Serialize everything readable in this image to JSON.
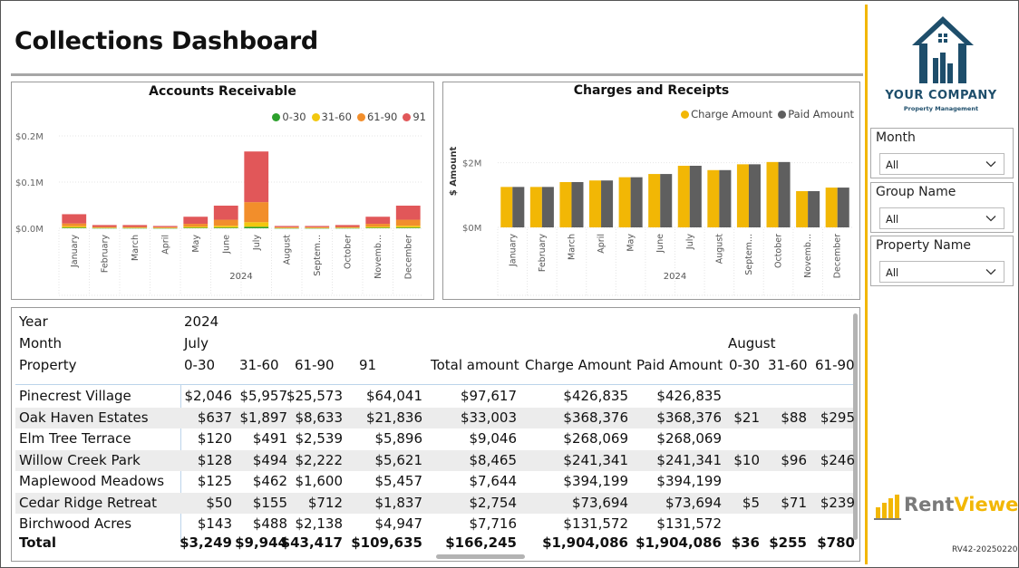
{
  "dashboard": {
    "title": "Collections Dashboard",
    "accent_color": "#f2b705",
    "brand_color": "#1e4e6b"
  },
  "ar_chart": {
    "chart_data": {
      "type": "bar",
      "stacked": true,
      "title": "Accounts Receivable",
      "categories": [
        "January",
        "February",
        "March",
        "April",
        "May",
        "June",
        "July",
        "August",
        "Septem...",
        "October",
        "Novemb...",
        "December"
      ],
      "group_label": "2024",
      "yticks": [
        "$0.0M",
        "$0.1M",
        "$0.2M"
      ],
      "ylim": [
        0,
        200000
      ],
      "legend_position": "top-right",
      "series": [
        {
          "name": "0-30",
          "color": "#2ca02c",
          "values": [
            1500,
            500,
            500,
            400,
            1200,
            1500,
            3249,
            400,
            400,
            500,
            1200,
            1500
          ]
        },
        {
          "name": "31-60",
          "color": "#f2c80f",
          "values": [
            3000,
            1000,
            1000,
            800,
            2500,
            4000,
            9944,
            800,
            800,
            1000,
            2500,
            4000
          ]
        },
        {
          "name": "61-90",
          "color": "#f28e2b",
          "values": [
            6000,
            1500,
            1500,
            1200,
            6000,
            13000,
            43417,
            1200,
            1200,
            1500,
            6000,
            13000
          ]
        },
        {
          "name": "91",
          "color": "#e15759",
          "values": [
            20000,
            4000,
            4000,
            2600,
            15300,
            30500,
            109635,
            2600,
            2600,
            4000,
            15300,
            30500
          ]
        }
      ]
    }
  },
  "cr_chart": {
    "chart_data": {
      "type": "bar",
      "title": "Charges and Receipts",
      "ylabel": "$ Amount",
      "categories": [
        "January",
        "February",
        "March",
        "April",
        "May",
        "June",
        "July",
        "August",
        "Septem...",
        "October",
        "Novemb...",
        "December"
      ],
      "group_label": "2024",
      "yticks": [
        "$0M",
        "$2M"
      ],
      "ylim": [
        0,
        2800000
      ],
      "legend_position": "top-right",
      "series": [
        {
          "name": "Charge Amount",
          "color": "#f2b705",
          "values": [
            1250000,
            1250000,
            1400000,
            1450000,
            1550000,
            1650000,
            1904086,
            1770000,
            1950000,
            2020000,
            1120000,
            1230000
          ]
        },
        {
          "name": "Paid Amount",
          "color": "#5f5f5f",
          "values": [
            1250000,
            1250000,
            1400000,
            1450000,
            1550000,
            1650000,
            1904086,
            1770000,
            1950000,
            2020000,
            1120000,
            1230000
          ]
        }
      ]
    }
  },
  "matrix": {
    "header": {
      "year_label": "Year",
      "year_value": "2024",
      "month_label": "Month",
      "month_july": "July",
      "month_august": "August",
      "property_label": "Property",
      "columns": [
        "0-30",
        "31-60",
        "61-90",
        "91",
        "Total amount",
        "Charge Amount",
        "Paid Amount",
        "0-30",
        "31-60",
        "61-90"
      ]
    },
    "rows": [
      {
        "name": "Pinecrest Village",
        "cells": [
          "$2,046",
          "$5,957",
          "$25,573",
          "$64,041",
          "$97,617",
          "$426,835",
          "$426,835",
          "",
          "",
          ""
        ]
      },
      {
        "name": "Oak Haven Estates",
        "cells": [
          "$637",
          "$1,897",
          "$8,633",
          "$21,836",
          "$33,003",
          "$368,376",
          "$368,376",
          "$21",
          "$88",
          "$295"
        ]
      },
      {
        "name": "Elm Tree Terrace",
        "cells": [
          "$120",
          "$491",
          "$2,539",
          "$5,896",
          "$9,046",
          "$268,069",
          "$268,069",
          "",
          "",
          ""
        ]
      },
      {
        "name": "Willow Creek Park",
        "cells": [
          "$128",
          "$494",
          "$2,222",
          "$5,621",
          "$8,465",
          "$241,341",
          "$241,341",
          "$10",
          "$96",
          "$246"
        ]
      },
      {
        "name": "Maplewood Meadows",
        "cells": [
          "$125",
          "$462",
          "$1,600",
          "$5,457",
          "$7,644",
          "$394,199",
          "$394,199",
          "",
          "",
          ""
        ]
      },
      {
        "name": "Cedar Ridge Retreat",
        "cells": [
          "$50",
          "$155",
          "$712",
          "$1,837",
          "$2,754",
          "$73,694",
          "$73,694",
          "$5",
          "$71",
          "$239"
        ]
      },
      {
        "name": "Birchwood Acres",
        "cells": [
          "$143",
          "$488",
          "$2,138",
          "$4,947",
          "$7,716",
          "$131,572",
          "$131,572",
          "",
          "",
          ""
        ]
      }
    ],
    "total": {
      "name": "Total",
      "cells": [
        "$3,249",
        "$9,944",
        "$43,417",
        "$109,635",
        "$166,245",
        "$1,904,086",
        "$1,904,086",
        "$36",
        "$255",
        "$780"
      ]
    }
  },
  "slicers": [
    {
      "label": "Month",
      "value": "All"
    },
    {
      "label": "Group Name",
      "value": "All"
    },
    {
      "label": "Property Name",
      "value": "All"
    }
  ],
  "branding": {
    "company_name": "YOUR COMPANY",
    "company_sub": "Property Management",
    "rv_part1": "Rent",
    "rv_part2": "Viewer",
    "version": "RV42-20250220"
  }
}
